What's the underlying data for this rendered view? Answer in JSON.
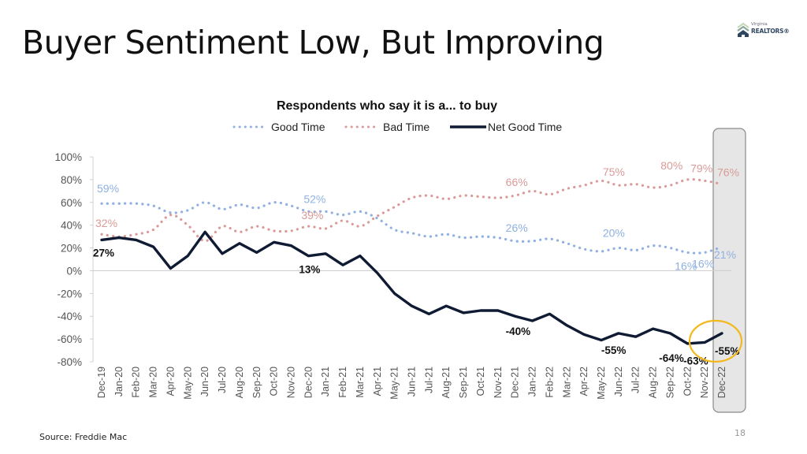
{
  "slide": {
    "title": "Buyer Sentiment Low, But Improving",
    "logo": {
      "small": "Virginia",
      "main": "REALTORS®",
      "icon": "house-chevron-icon"
    },
    "source": "Source: Freddie Mac",
    "page_number": "18"
  },
  "colors": {
    "good": "#8fb0e0",
    "bad": "#d99a98",
    "net": "#0f1a33",
    "highlight_fill": "#e6e6e6",
    "highlight_circle": "#f2b81c"
  },
  "chart_data": {
    "type": "line",
    "title": "Respondents who say it is a... to buy",
    "xlabel": "",
    "ylabel": "",
    "ylim": [
      -80,
      100
    ],
    "yticks": [
      "100%",
      "80%",
      "60%",
      "40%",
      "20%",
      "0%",
      "-20%",
      "-40%",
      "-60%",
      "-80%"
    ],
    "ytick_values": [
      100,
      80,
      60,
      40,
      20,
      0,
      -20,
      -40,
      -60,
      -80
    ],
    "grid": false,
    "legend_position": "top",
    "categories": [
      "Dec-19",
      "Jan-20",
      "Feb-20",
      "Mar-20",
      "Apr-20",
      "May-20",
      "Jun-20",
      "Jul-20",
      "Aug-20",
      "Sep-20",
      "Oct-20",
      "Nov-20",
      "Dec-20",
      "Jan-21",
      "Feb-21",
      "Mar-21",
      "Apr-21",
      "May-21",
      "Jun-21",
      "Jul-21",
      "Aug-21",
      "Sep-21",
      "Oct-21",
      "Nov-21",
      "Dec-21",
      "Jan-22",
      "Feb-22",
      "Mar-22",
      "Apr-22",
      "May-22",
      "Jun-22",
      "Jul-22",
      "Aug-22",
      "Sep-22",
      "Oct-22",
      "Nov-22",
      "Dec-22"
    ],
    "series": [
      {
        "name": "Good Time",
        "style": "dotted",
        "color": "#8fb0e0",
        "values": [
          59,
          59,
          59,
          57,
          51,
          53,
          60,
          54,
          58,
          55,
          60,
          57,
          52,
          52,
          49,
          52,
          46,
          36,
          33,
          30,
          32,
          29,
          30,
          29,
          26,
          26,
          28,
          24,
          19,
          17,
          20,
          18,
          22,
          20,
          16,
          16,
          21
        ]
      },
      {
        "name": "Bad Time",
        "style": "dotted",
        "color": "#d99a98",
        "values": [
          32,
          30,
          32,
          36,
          49,
          40,
          26,
          39,
          34,
          39,
          35,
          35,
          39,
          37,
          44,
          39,
          48,
          56,
          64,
          66,
          63,
          66,
          65,
          64,
          66,
          70,
          67,
          72,
          75,
          79,
          75,
          76,
          73,
          75,
          80,
          79,
          76
        ]
      },
      {
        "name": "Net Good Time",
        "style": "solid",
        "color": "#0f1a33",
        "values": [
          27,
          29,
          27,
          21,
          2,
          13,
          34,
          15,
          24,
          16,
          25,
          22,
          13,
          15,
          5,
          13,
          -2,
          -20,
          -31,
          -38,
          -31,
          -37,
          -35,
          -35,
          -40,
          -44,
          -38,
          -48,
          -56,
          -61,
          -55,
          -58,
          -51,
          -55,
          -64,
          -63,
          -55
        ]
      }
    ],
    "annotations": [
      {
        "series": "Good Time",
        "category": "Dec-19",
        "text": "59%"
      },
      {
        "series": "Good Time",
        "category": "Dec-20",
        "text": "52%"
      },
      {
        "series": "Good Time",
        "category": "Dec-21",
        "text": "26%"
      },
      {
        "series": "Good Time",
        "category": "Jun-22",
        "text": "20%"
      },
      {
        "series": "Good Time",
        "category": "Oct-22",
        "text": "16%"
      },
      {
        "series": "Good Time",
        "category": "Nov-22",
        "text": "16%"
      },
      {
        "series": "Good Time",
        "category": "Dec-22",
        "text": "21%"
      },
      {
        "series": "Bad Time",
        "category": "Dec-19",
        "text": "32%"
      },
      {
        "series": "Bad Time",
        "category": "Dec-20",
        "text": "39%"
      },
      {
        "series": "Bad Time",
        "category": "Dec-21",
        "text": "66%"
      },
      {
        "series": "Bad Time",
        "category": "Jun-22",
        "text": "75%"
      },
      {
        "series": "Bad Time",
        "category": "Oct-22",
        "text": "80%"
      },
      {
        "series": "Bad Time",
        "category": "Nov-22",
        "text": "79%"
      },
      {
        "series": "Bad Time",
        "category": "Dec-22",
        "text": "76%"
      },
      {
        "series": "Net Good Time",
        "category": "Dec-19",
        "text": "27%"
      },
      {
        "series": "Net Good Time",
        "category": "Dec-20",
        "text": "13%"
      },
      {
        "series": "Net Good Time",
        "category": "Dec-21",
        "text": "-40%"
      },
      {
        "series": "Net Good Time",
        "category": "Jun-22",
        "text": "-55%"
      },
      {
        "series": "Net Good Time",
        "category": "Oct-22",
        "text": "-64%"
      },
      {
        "series": "Net Good Time",
        "category": "Nov-22",
        "text": "-63%"
      },
      {
        "series": "Net Good Time",
        "category": "Dec-22",
        "text": "-55%"
      }
    ],
    "highlight": {
      "category": "Dec-22",
      "shape": "shaded-column-with-circle"
    }
  }
}
